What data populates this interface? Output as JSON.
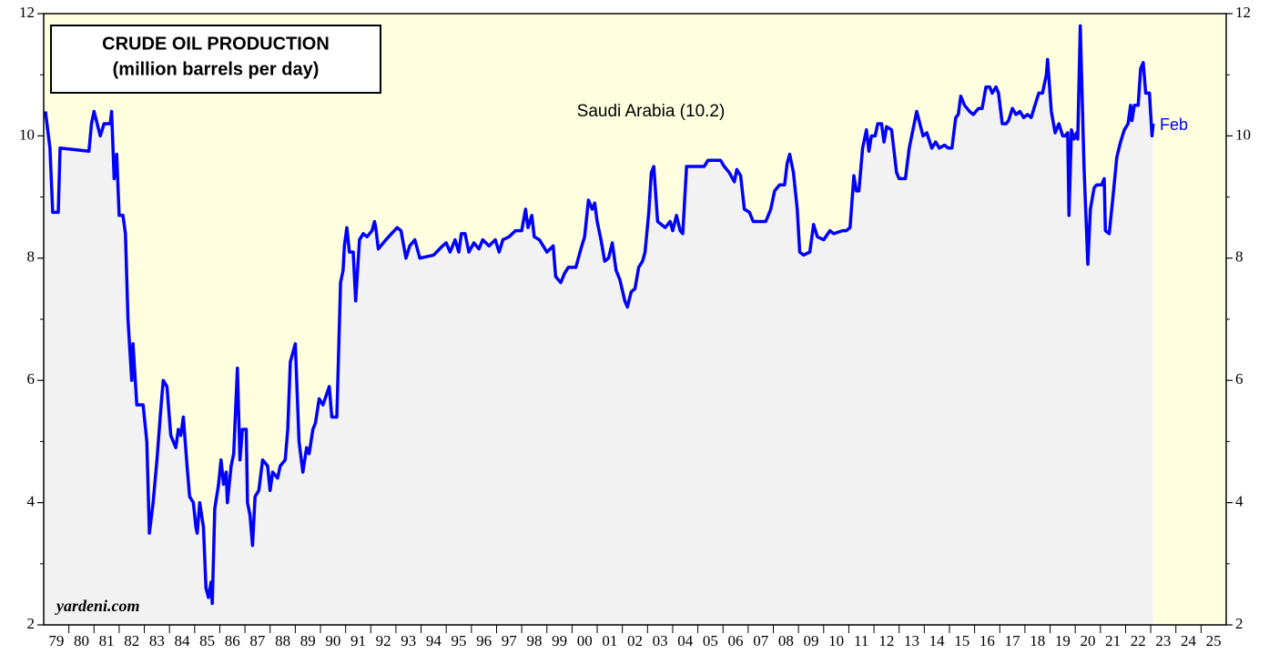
{
  "chart_data": {
    "type": "line",
    "title": [
      "CRUDE OIL PRODUCTION",
      "(million barrels per day)"
    ],
    "annotation": "Saudi Arabia (10.2)",
    "end_label": "Feb",
    "source": "yardeni.com",
    "categories": [
      "79",
      "80",
      "81",
      "82",
      "83",
      "84",
      "85",
      "86",
      "87",
      "88",
      "89",
      "90",
      "91",
      "92",
      "93",
      "94",
      "95",
      "96",
      "97",
      "98",
      "99",
      "00",
      "01",
      "02",
      "03",
      "04",
      "05",
      "06",
      "07",
      "08",
      "09",
      "10",
      "11",
      "12",
      "13",
      "14",
      "15",
      "16",
      "17",
      "18",
      "19",
      "20",
      "21",
      "22",
      "23",
      "24",
      "25"
    ],
    "xlim": [
      1979,
      2026
    ],
    "ylim": [
      2,
      12
    ],
    "yticks": [
      2,
      4,
      6,
      8,
      10,
      12
    ],
    "series": [
      {
        "name": "Saudi Arabia",
        "color": "#0000ff",
        "x": [
          1979.07,
          1979.25,
          1979.36,
          1979.58,
          1979.65,
          1980.8,
          1980.9,
          1981.0,
          1981.25,
          1981.4,
          1981.65,
          1981.7,
          1981.8,
          1981.9,
          1982.0,
          1982.15,
          1982.25,
          1982.35,
          1982.5,
          1982.55,
          1982.7,
          1982.95,
          1983.1,
          1983.2,
          1983.35,
          1983.5,
          1983.65,
          1983.75,
          1983.9,
          1984.05,
          1984.25,
          1984.35,
          1984.45,
          1984.55,
          1984.7,
          1984.8,
          1984.95,
          1985.05,
          1985.1,
          1985.2,
          1985.35,
          1985.45,
          1985.55,
          1985.65,
          1985.7,
          1985.8,
          1985.95,
          1986.05,
          1986.15,
          1986.25,
          1986.3,
          1986.45,
          1986.55,
          1986.7,
          1986.8,
          1986.9,
          1987.05,
          1987.1,
          1987.2,
          1987.3,
          1987.4,
          1987.55,
          1987.7,
          1987.9,
          1988.0,
          1988.1,
          1988.3,
          1988.4,
          1988.6,
          1988.7,
          1988.8,
          1989.0,
          1989.15,
          1989.3,
          1989.45,
          1989.55,
          1989.7,
          1989.8,
          1989.95,
          1990.1,
          1990.35,
          1990.45,
          1990.65,
          1990.8,
          1990.9,
          1990.95,
          1991.05,
          1991.15,
          1991.3,
          1991.4,
          1991.55,
          1991.7,
          1991.85,
          1992.05,
          1992.15,
          1992.2,
          1992.3,
          1992.6,
          1993.05,
          1993.2,
          1993.4,
          1993.55,
          1993.75,
          1993.95,
          1994.5,
          1994.85,
          1995.0,
          1995.15,
          1995.35,
          1995.5,
          1995.6,
          1995.75,
          1995.9,
          1996.1,
          1996.3,
          1996.45,
          1996.7,
          1996.95,
          1997.1,
          1997.25,
          1997.5,
          1997.75,
          1998.0,
          1998.15,
          1998.25,
          1998.4,
          1998.5,
          1998.7,
          1999.0,
          1999.25,
          1999.35,
          1999.55,
          1999.7,
          1999.85,
          2000.15,
          2000.35,
          2000.5,
          2000.65,
          2000.8,
          2000.9,
          2001.0,
          2001.15,
          2001.3,
          2001.45,
          2001.6,
          2001.75,
          2001.9,
          2002.1,
          2002.2,
          2002.35,
          2002.5,
          2002.65,
          2002.8,
          2002.9,
          2003.05,
          2003.15,
          2003.25,
          2003.4,
          2003.7,
          2003.9,
          2004.0,
          2004.15,
          2004.3,
          2004.4,
          2004.55,
          2005.25,
          2005.4,
          2005.9,
          2006.05,
          2006.25,
          2006.45,
          2006.55,
          2006.7,
          2006.85,
          2007.05,
          2007.2,
          2007.7,
          2007.9,
          2008.05,
          2008.25,
          2008.45,
          2008.55,
          2008.65,
          2008.8,
          2008.95,
          2009.05,
          2009.2,
          2009.45,
          2009.6,
          2009.75,
          2010.0,
          2010.25,
          2010.4,
          2010.75,
          2010.9,
          2011.05,
          2011.2,
          2011.3,
          2011.4,
          2011.55,
          2011.7,
          2011.8,
          2011.9,
          2012.05,
          2012.15,
          2012.3,
          2012.4,
          2012.5,
          2012.7,
          2012.9,
          2013.0,
          2013.25,
          2013.4,
          2013.55,
          2013.7,
          2013.95,
          2014.1,
          2014.3,
          2014.45,
          2014.6,
          2014.8,
          2014.95,
          2015.1,
          2015.25,
          2015.35,
          2015.45,
          2015.6,
          2015.8,
          2015.95,
          2016.15,
          2016.3,
          2016.45,
          2016.6,
          2016.7,
          2016.85,
          2016.95,
          2017.1,
          2017.25,
          2017.35,
          2017.5,
          2017.65,
          2017.8,
          2017.95,
          2018.1,
          2018.25,
          2018.4,
          2018.55,
          2018.7,
          2018.85,
          2018.9,
          2019.05,
          2019.2,
          2019.35,
          2019.5,
          2019.6,
          2019.7,
          2019.75,
          2019.85,
          2019.95,
          2020.05,
          2020.1,
          2020.2,
          2020.35,
          2020.5,
          2020.6,
          2020.75,
          2020.85,
          2021.05,
          2021.15,
          2021.2,
          2021.35,
          2021.5,
          2021.65,
          2021.8,
          2021.95,
          2022.1,
          2022.2,
          2022.25,
          2022.35,
          2022.5,
          2022.6,
          2022.7,
          2022.8,
          2022.95,
          2023.05,
          2023.1
        ],
        "values": [
          10.4,
          9.8,
          8.75,
          8.75,
          9.8,
          9.75,
          10.2,
          10.4,
          10.0,
          10.2,
          10.2,
          10.4,
          9.3,
          9.7,
          8.7,
          8.7,
          8.4,
          7.0,
          6.0,
          6.6,
          5.6,
          5.6,
          5.0,
          3.5,
          4.0,
          4.7,
          5.5,
          6.0,
          5.9,
          5.1,
          4.9,
          5.2,
          5.1,
          5.4,
          4.6,
          4.1,
          4.0,
          3.6,
          3.5,
          4.0,
          3.6,
          2.6,
          2.45,
          2.7,
          2.35,
          3.9,
          4.3,
          4.7,
          4.3,
          4.5,
          4.0,
          4.6,
          4.8,
          6.2,
          4.7,
          5.2,
          5.2,
          4.0,
          3.8,
          3.3,
          4.1,
          4.2,
          4.7,
          4.6,
          4.2,
          4.5,
          4.4,
          4.6,
          4.7,
          5.2,
          6.3,
          6.6,
          5.0,
          4.5,
          4.9,
          4.8,
          5.2,
          5.3,
          5.7,
          5.6,
          5.9,
          5.4,
          5.4,
          7.6,
          7.8,
          8.2,
          8.5,
          8.1,
          8.1,
          7.3,
          8.3,
          8.4,
          8.35,
          8.45,
          8.6,
          8.5,
          8.15,
          8.3,
          8.5,
          8.45,
          8.0,
          8.2,
          8.3,
          8.0,
          8.05,
          8.2,
          8.25,
          8.1,
          8.3,
          8.1,
          8.4,
          8.4,
          8.1,
          8.25,
          8.15,
          8.3,
          8.2,
          8.3,
          8.1,
          8.3,
          8.35,
          8.45,
          8.45,
          8.8,
          8.5,
          8.7,
          8.35,
          8.3,
          8.1,
          8.2,
          7.7,
          7.6,
          7.75,
          7.85,
          7.85,
          8.15,
          8.35,
          8.95,
          8.8,
          8.9,
          8.6,
          8.3,
          7.95,
          8.0,
          8.25,
          7.8,
          7.65,
          7.3,
          7.2,
          7.45,
          7.5,
          7.85,
          7.95,
          8.1,
          8.75,
          9.4,
          9.5,
          8.6,
          8.5,
          8.6,
          8.45,
          8.7,
          8.45,
          8.4,
          9.5,
          9.5,
          9.6,
          9.6,
          9.5,
          9.4,
          9.25,
          9.45,
          9.35,
          8.8,
          8.75,
          8.6,
          8.6,
          8.8,
          9.1,
          9.2,
          9.2,
          9.55,
          9.7,
          9.4,
          8.8,
          8.1,
          8.05,
          8.1,
          8.55,
          8.35,
          8.3,
          8.45,
          8.4,
          8.45,
          8.45,
          8.5,
          9.35,
          9.1,
          9.1,
          9.8,
          10.1,
          9.75,
          10.0,
          10.0,
          10.2,
          10.2,
          9.9,
          10.15,
          10.1,
          9.4,
          9.3,
          9.3,
          9.8,
          10.1,
          10.4,
          10.0,
          10.05,
          9.8,
          9.9,
          9.8,
          9.85,
          9.8,
          9.8,
          10.3,
          10.35,
          10.65,
          10.5,
          10.4,
          10.35,
          10.45,
          10.45,
          10.8,
          10.8,
          10.7,
          10.8,
          10.7,
          10.2,
          10.2,
          10.25,
          10.45,
          10.35,
          10.4,
          10.3,
          10.35,
          10.3,
          10.5,
          10.7,
          10.7,
          11.0,
          11.25,
          10.4,
          10.05,
          10.2,
          10.0,
          10.0,
          10.05,
          8.7,
          10.1,
          9.95,
          10.05,
          9.95,
          11.8,
          9.5,
          7.9,
          8.8,
          9.15,
          9.2,
          9.2,
          9.3,
          8.45,
          8.4,
          9.0,
          9.65,
          9.9,
          10.1,
          10.2,
          10.5,
          10.25,
          10.5,
          10.5,
          11.1,
          11.2,
          10.7,
          10.7,
          10.0,
          10.2
        ]
      }
    ]
  }
}
